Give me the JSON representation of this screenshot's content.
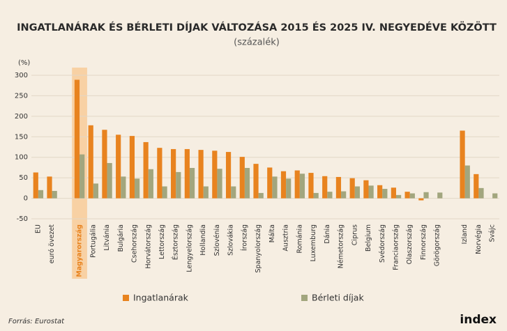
{
  "chart_data": {
    "type": "bar",
    "title": "INGATLANÁRAK ÉS BÉRLETI DÍJAK VÁLTOZÁSA 2015 ÉS 2025 IV. NEGYEDÉVE KÖZÖTT",
    "subtitle": "(százalék)",
    "y_label": "(%)",
    "categories": [
      "EU",
      "euró övezet",
      null,
      "Magyarország",
      "Portugália",
      "Litvánia",
      "Bulgária",
      "Csehország",
      "Horvátország",
      "Lettország",
      "Észtország",
      "Lengyelország",
      "Hollandia",
      "Szlovénia",
      "Szlovákia",
      "Írország",
      "Spanyolország",
      "Málta",
      "Ausztria",
      "Románia",
      "Luxemburg",
      "Dánia",
      "Németország",
      "Ciprus",
      "Belgium",
      "Svédország",
      "Franciaország",
      "Olaszország",
      "Finnország",
      "Görögország",
      null,
      "Izland",
      "Norvégia",
      "Svájc"
    ],
    "series": [
      {
        "name": "Ingatlanárak",
        "color": "#e8831f",
        "values": [
          63,
          53,
          null,
          289,
          178,
          167,
          155,
          152,
          137,
          123,
          120,
          120,
          118,
          116,
          113,
          101,
          84,
          75,
          66,
          68,
          62,
          54,
          52,
          49,
          44,
          32,
          26,
          16,
          -5,
          null,
          null,
          165,
          59,
          null
        ]
      },
      {
        "name": "Bérleti díjak",
        "color": "#a2a67e",
        "values": [
          20,
          18,
          null,
          107,
          36,
          86,
          53,
          48,
          71,
          29,
          64,
          74,
          29,
          72,
          29,
          74,
          13,
          53,
          48,
          60,
          13,
          16,
          17,
          29,
          31,
          23,
          8,
          12,
          15,
          14,
          null,
          80,
          25,
          12
        ]
      }
    ],
    "highlight_category": 3,
    "highlight_color": "#f8d1a4",
    "ylim": [
      -50,
      300
    ],
    "yticks": [
      -50,
      0,
      50,
      100,
      150,
      200,
      250,
      300
    ],
    "grid": true,
    "source": "Forrás: Eurostat",
    "logo": "index"
  }
}
